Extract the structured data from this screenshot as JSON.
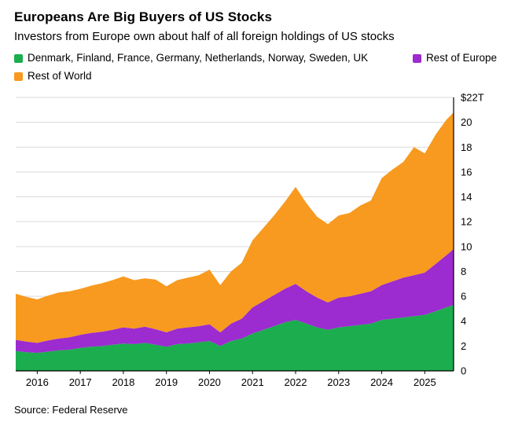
{
  "header": {
    "title": "Europeans Are Big Buyers of US Stocks",
    "subtitle": "Investors from Europe own about half of all foreign holdings of US stocks"
  },
  "footer": {
    "source": "Source: Federal Reserve"
  },
  "colors": {
    "europe8": "#1CAD4F",
    "rest_of_europe": "#9C2BD0",
    "rest_of_world": "#F79A1F",
    "grid": "#D9D9D9",
    "axis": "#000000",
    "text": "#000000",
    "background": "#FFFFFF"
  },
  "chart_data": {
    "type": "area",
    "stacked": true,
    "title": "Europeans Are Big Buyers of US Stocks",
    "subtitle": "Investors from Europe own about half of all foreign holdings of US stocks",
    "unit": "trillions of US dollars",
    "legend_position": "top",
    "grid": true,
    "grid_color": "#D9D9D9",
    "axis_color": "#000000",
    "ylim": [
      0,
      22
    ],
    "yticks": [
      0,
      2,
      4,
      6,
      8,
      10,
      12,
      14,
      16,
      18,
      20,
      22
    ],
    "ytick_labels": [
      "0",
      "2",
      "4",
      "6",
      "8",
      "10",
      "12",
      "14",
      "16",
      "18",
      "20",
      "$22T"
    ],
    "xticks": [
      2016,
      2017,
      2018,
      2019,
      2020,
      2021,
      2022,
      2023,
      2024,
      2025
    ],
    "x": [
      2015.5,
      2015.75,
      2016.0,
      2016.25,
      2016.5,
      2016.75,
      2017.0,
      2017.25,
      2017.5,
      2017.75,
      2018.0,
      2018.25,
      2018.5,
      2018.75,
      2019.0,
      2019.25,
      2019.5,
      2019.75,
      2020.0,
      2020.25,
      2020.5,
      2020.75,
      2021.0,
      2021.25,
      2021.5,
      2021.75,
      2022.0,
      2022.25,
      2022.5,
      2022.75,
      2023.0,
      2023.25,
      2023.5,
      2023.75,
      2024.0,
      2024.25,
      2024.5,
      2024.75,
      2025.0,
      2025.25,
      2025.5,
      2025.67
    ],
    "series": [
      {
        "name": "Denmark, Finland, France, Germany, Netherlands, Norway, Sweden, UK",
        "color": "#1CAD4F",
        "values": [
          1.6,
          1.5,
          1.45,
          1.55,
          1.65,
          1.7,
          1.85,
          1.95,
          2.0,
          2.1,
          2.2,
          2.15,
          2.25,
          2.1,
          1.95,
          2.15,
          2.2,
          2.3,
          2.4,
          2.0,
          2.4,
          2.6,
          3.0,
          3.3,
          3.6,
          3.9,
          4.1,
          3.8,
          3.5,
          3.3,
          3.5,
          3.6,
          3.7,
          3.8,
          4.1,
          4.2,
          4.3,
          4.4,
          4.5,
          4.8,
          5.1,
          5.3
        ]
      },
      {
        "name": "Rest of Europe",
        "color": "#9C2BD0",
        "values": [
          0.9,
          0.85,
          0.8,
          0.9,
          0.95,
          1.0,
          1.05,
          1.1,
          1.15,
          1.2,
          1.3,
          1.25,
          1.3,
          1.25,
          1.15,
          1.25,
          1.3,
          1.3,
          1.35,
          1.1,
          1.4,
          1.6,
          2.1,
          2.3,
          2.5,
          2.7,
          2.9,
          2.6,
          2.4,
          2.2,
          2.4,
          2.4,
          2.5,
          2.6,
          2.8,
          3.0,
          3.2,
          3.3,
          3.4,
          3.8,
          4.2,
          4.5
        ]
      },
      {
        "name": "Rest of World",
        "color": "#F79A1F",
        "values": [
          3.7,
          3.6,
          3.5,
          3.6,
          3.7,
          3.7,
          3.7,
          3.8,
          3.9,
          4.0,
          4.1,
          3.9,
          3.9,
          4.0,
          3.7,
          3.9,
          4.0,
          4.1,
          4.4,
          3.8,
          4.2,
          4.5,
          5.4,
          5.9,
          6.4,
          7.0,
          7.8,
          7.1,
          6.5,
          6.3,
          6.6,
          6.7,
          7.1,
          7.3,
          8.6,
          9.0,
          9.3,
          10.3,
          9.6,
          10.4,
          10.9,
          11.0
        ]
      }
    ]
  }
}
